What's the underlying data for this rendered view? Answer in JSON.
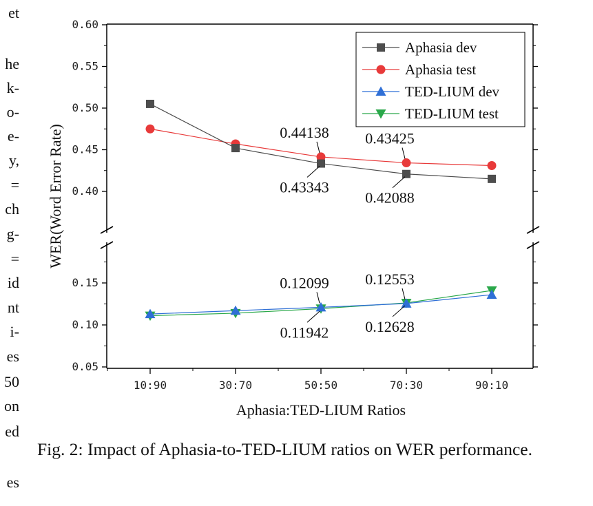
{
  "left_column_fragments": [
    "et",
    "he",
    "k-",
    "o-",
    "e-",
    "y,",
    "=",
    "ch",
    "g-",
    "=",
    "id",
    "nt",
    "i-",
    "es",
    "50",
    "on",
    "ed",
    "es"
  ],
  "caption": "Fig. 2: Impact of Aphasia-to-TED-LIUM ratios on WER performance.",
  "chart_data": {
    "type": "line",
    "title": "",
    "xlabel": "Aphasia:TED-LIUM Ratios",
    "ylabel": "WER(Word Error Rate)",
    "categories": [
      "10:90",
      "30:70",
      "50:50",
      "70:30",
      "90:10"
    ],
    "y_axis_break": {
      "lower_range": [
        0.05,
        0.2
      ],
      "upper_range": [
        0.35,
        0.6
      ]
    },
    "yticks_lower": [
      "0.05",
      "0.10",
      "0.15"
    ],
    "yticks_upper": [
      "0.40",
      "0.45",
      "0.50",
      "0.55",
      "0.60"
    ],
    "grid": false,
    "legend_position": "top-right",
    "series": [
      {
        "name": "Aphasia dev",
        "color": "#4d4d4d",
        "marker": "square",
        "values": [
          0.505,
          0.452,
          0.43343,
          0.42088,
          0.415
        ]
      },
      {
        "name": "Aphasia test",
        "color": "#e83a3a",
        "marker": "circle",
        "values": [
          0.475,
          0.457,
          0.44138,
          0.43425,
          0.431
        ]
      },
      {
        "name": "TED-LIUM dev",
        "color": "#2f6fd6",
        "marker": "triangle-up",
        "values": [
          0.113,
          0.117,
          0.12099,
          0.12553,
          0.136
        ]
      },
      {
        "name": "TED-LIUM test",
        "color": "#2aa84a",
        "marker": "triangle-down",
        "values": [
          0.111,
          0.114,
          0.11942,
          0.12628,
          0.141
        ]
      }
    ],
    "annotations": [
      {
        "text": "0.44138",
        "series": "Aphasia test",
        "category": "50:50",
        "side": "above"
      },
      {
        "text": "0.43425",
        "series": "Aphasia test",
        "category": "70:30",
        "side": "above"
      },
      {
        "text": "0.43343",
        "series": "Aphasia dev",
        "category": "50:50",
        "side": "below"
      },
      {
        "text": "0.42088",
        "series": "Aphasia dev",
        "category": "70:30",
        "side": "below"
      },
      {
        "text": "0.12099",
        "series": "TED-LIUM dev",
        "category": "50:50",
        "side": "above"
      },
      {
        "text": "0.12553",
        "series": "TED-LIUM dev",
        "category": "70:30",
        "side": "above"
      },
      {
        "text": "0.11942",
        "series": "TED-LIUM test",
        "category": "50:50",
        "side": "below"
      },
      {
        "text": "0.12628",
        "series": "TED-LIUM test",
        "category": "70:30",
        "side": "below"
      }
    ]
  }
}
